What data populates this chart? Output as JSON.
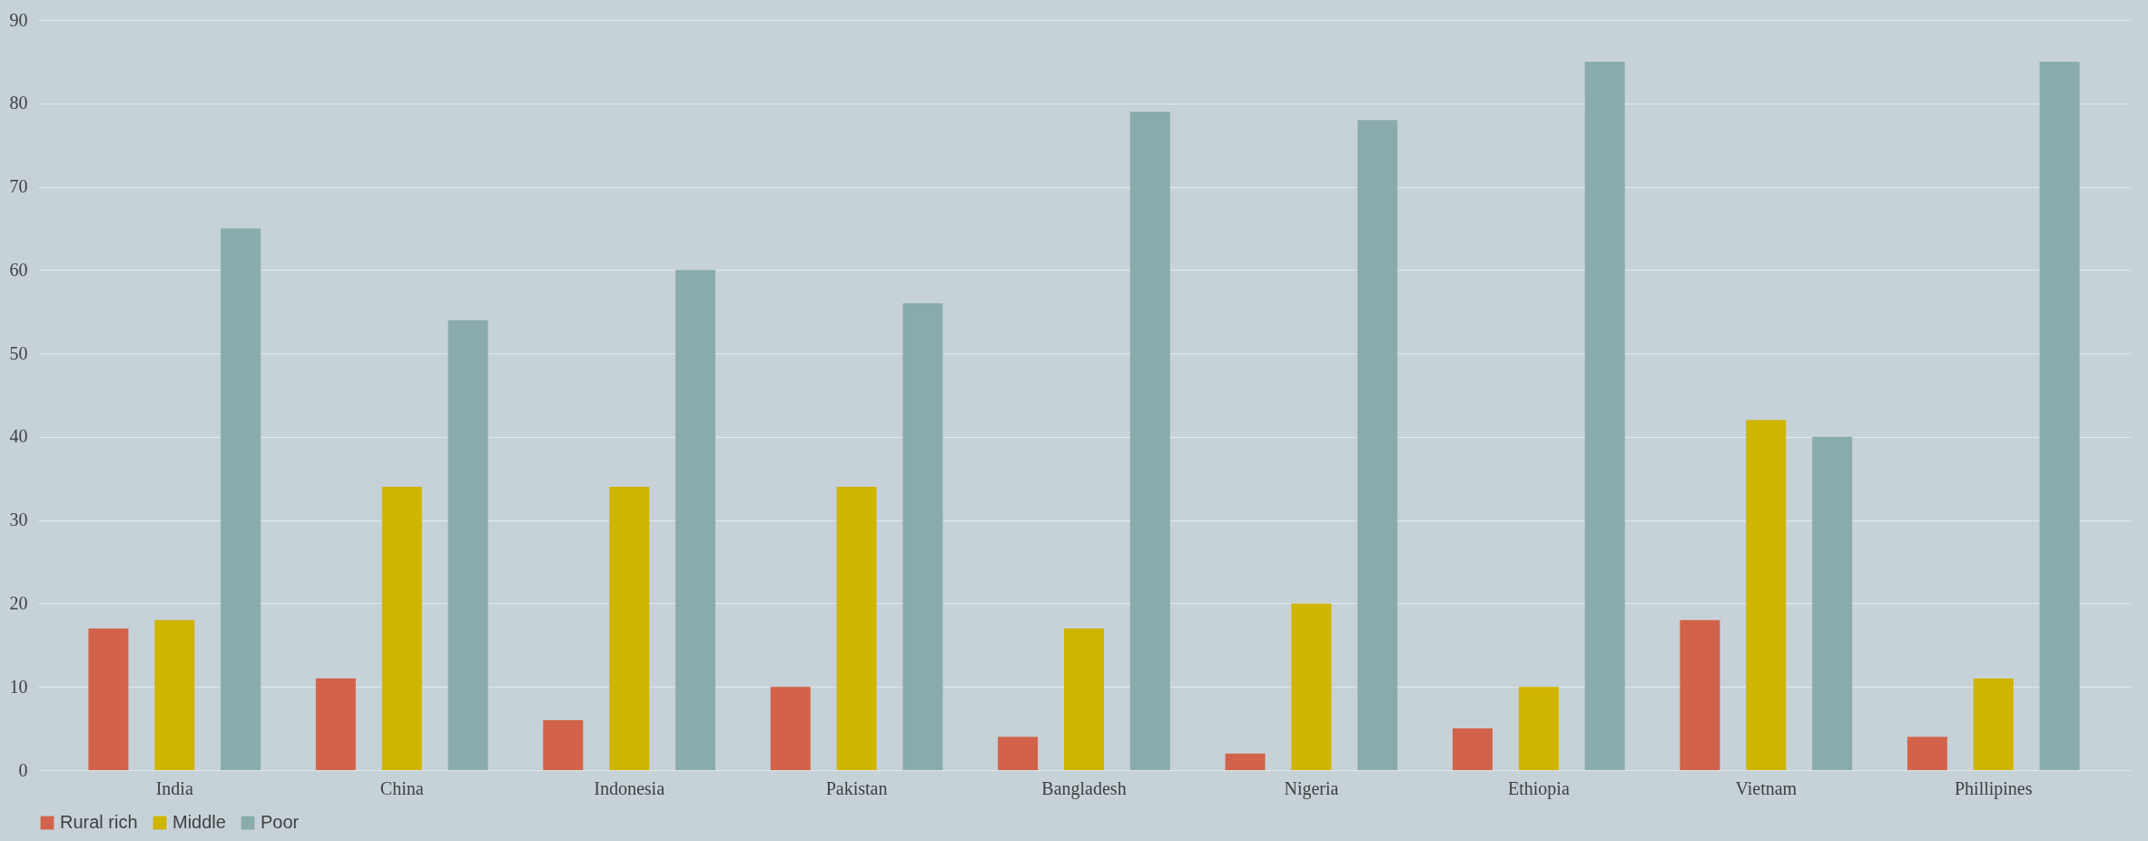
{
  "chart_data": {
    "type": "bar",
    "categories": [
      "India",
      "China",
      "Indonesia",
      "Pakistan",
      "Bangladesh",
      "Nigeria",
      "Ethiopia",
      "Vietnam",
      "Phillipines"
    ],
    "series": [
      {
        "name": "Rural rich",
        "color": "#d2634a",
        "values": [
          17,
          11,
          6,
          10,
          4,
          2,
          5,
          18,
          4
        ]
      },
      {
        "name": "Middle",
        "color": "#cfb400",
        "values": [
          18,
          34,
          34,
          34,
          17,
          20,
          10,
          42,
          11
        ]
      },
      {
        "name": "Poor",
        "color": "#8aabab",
        "values": [
          65,
          54,
          60,
          56,
          79,
          78,
          85,
          40,
          85
        ]
      }
    ],
    "ylim": [
      0,
      90
    ],
    "yticks": [
      0,
      10,
      20,
      30,
      40,
      50,
      60,
      70,
      80,
      90
    ],
    "grid": "y",
    "legend": "bottom"
  }
}
